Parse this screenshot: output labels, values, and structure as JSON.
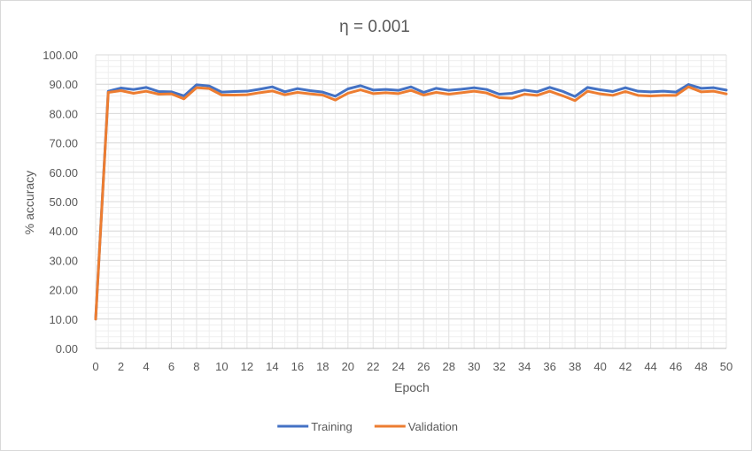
{
  "chart_data": {
    "type": "line",
    "title": "η = 0.001",
    "xlabel": "Epoch",
    "ylabel": "% accuracy",
    "xlim": [
      0,
      50
    ],
    "ylim": [
      0,
      100
    ],
    "y_step": 10,
    "x_tick_step": 2,
    "y_tick_decimals": 2,
    "grid": true,
    "minor_grid": true,
    "legend_position": "bottom",
    "x": [
      0,
      1,
      2,
      3,
      4,
      5,
      6,
      7,
      8,
      9,
      10,
      11,
      12,
      13,
      14,
      15,
      16,
      17,
      18,
      19,
      20,
      21,
      22,
      23,
      24,
      25,
      26,
      27,
      28,
      29,
      30,
      31,
      32,
      33,
      34,
      35,
      36,
      37,
      38,
      39,
      40,
      41,
      42,
      43,
      44,
      45,
      46,
      47,
      48,
      49,
      50
    ],
    "series": [
      {
        "name": "Training",
        "color": "#4472c4",
        "values": [
          10.0,
          87.6,
          88.7,
          88.2,
          88.9,
          87.5,
          87.4,
          86.0,
          89.8,
          89.4,
          87.3,
          87.5,
          87.6,
          88.3,
          89.1,
          87.4,
          88.5,
          87.8,
          87.3,
          85.9,
          88.4,
          89.5,
          88.0,
          88.2,
          87.9,
          89.1,
          87.2,
          88.6,
          87.9,
          88.3,
          88.8,
          88.2,
          86.6,
          86.9,
          88.0,
          87.4,
          88.9,
          87.6,
          85.8,
          88.9,
          88.1,
          87.5,
          88.8,
          87.6,
          87.4,
          87.6,
          87.3,
          89.9,
          88.6,
          88.8,
          88.0
        ]
      },
      {
        "name": "Validation",
        "color": "#ed7d31",
        "values": [
          10.0,
          87.2,
          87.8,
          86.9,
          87.6,
          86.6,
          86.7,
          85.0,
          88.8,
          88.5,
          86.3,
          86.3,
          86.4,
          87.1,
          87.7,
          86.4,
          87.2,
          86.7,
          86.3,
          84.6,
          86.9,
          88.1,
          86.8,
          87.1,
          86.8,
          87.9,
          86.3,
          87.2,
          86.6,
          87.1,
          87.6,
          87.0,
          85.4,
          85.2,
          86.6,
          86.2,
          87.6,
          86.1,
          84.4,
          87.6,
          86.7,
          86.2,
          87.5,
          86.2,
          86.0,
          86.2,
          86.2,
          89.1,
          87.4,
          87.6,
          86.7
        ]
      }
    ]
  }
}
